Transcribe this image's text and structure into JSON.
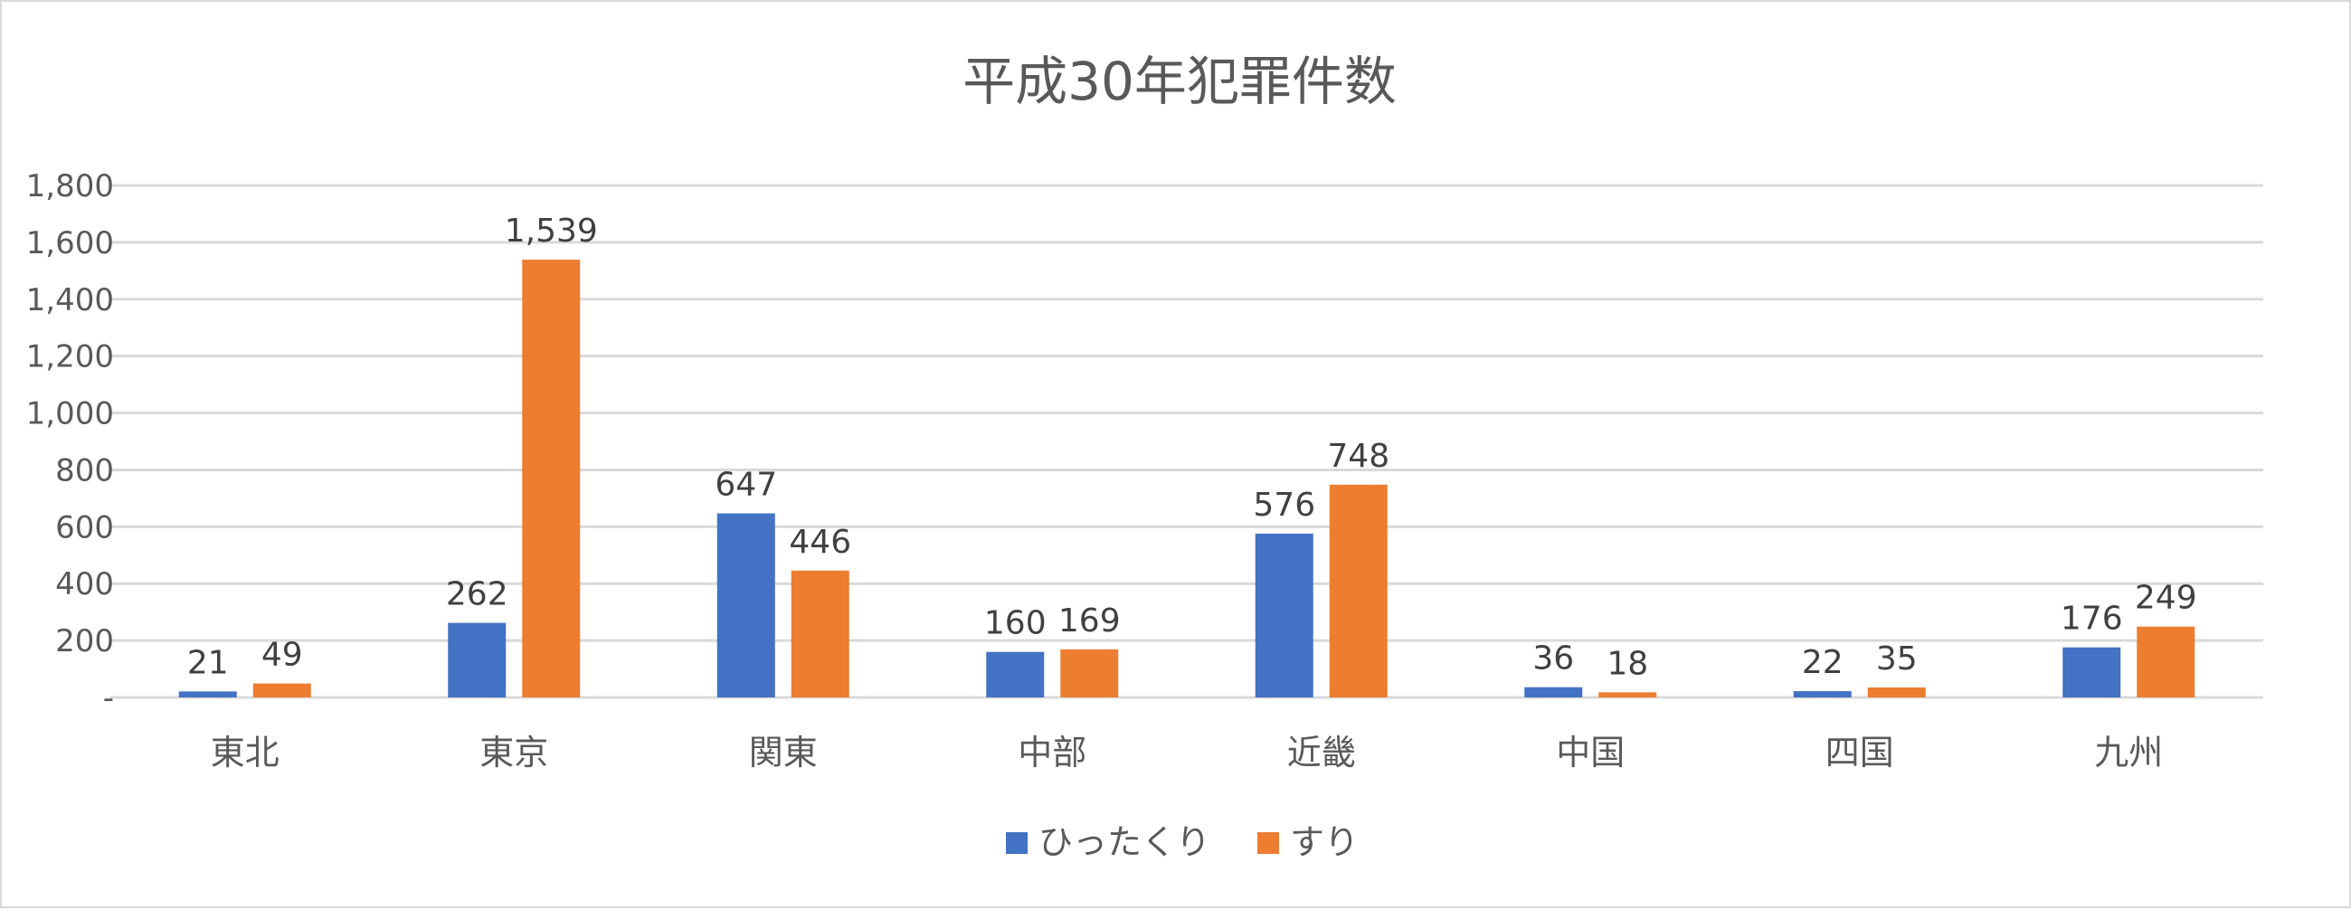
{
  "chart_data": {
    "type": "bar",
    "title": "平成30年犯罪件数",
    "categories": [
      "東北",
      "東京",
      "関東",
      "中部",
      "近畿",
      "中国",
      "四国",
      "九州"
    ],
    "series": [
      {
        "name": "ひったくり",
        "color": "#4472C4",
        "values": [
          21,
          262,
          647,
          160,
          576,
          36,
          22,
          176
        ]
      },
      {
        "name": "すり",
        "color": "#ED7D31",
        "values": [
          49,
          1539,
          446,
          169,
          748,
          18,
          35,
          249
        ]
      }
    ],
    "data_labels": [
      [
        "21",
        "262",
        "647",
        "160",
        "576",
        "36",
        "22",
        "176"
      ],
      [
        "49",
        "1,539",
        "446",
        "169",
        "748",
        "18",
        "35",
        "249"
      ]
    ],
    "ylim": [
      0,
      1800
    ],
    "y_ticks": [
      0,
      200,
      400,
      600,
      800,
      1000,
      1200,
      1400,
      1600,
      1800
    ],
    "y_tick_labels": [
      "-",
      "200",
      "400",
      "600",
      "800",
      "1,000",
      "1,200",
      "1,400",
      "1,600",
      "1,800"
    ],
    "grid": true,
    "legend_position": "bottom"
  }
}
